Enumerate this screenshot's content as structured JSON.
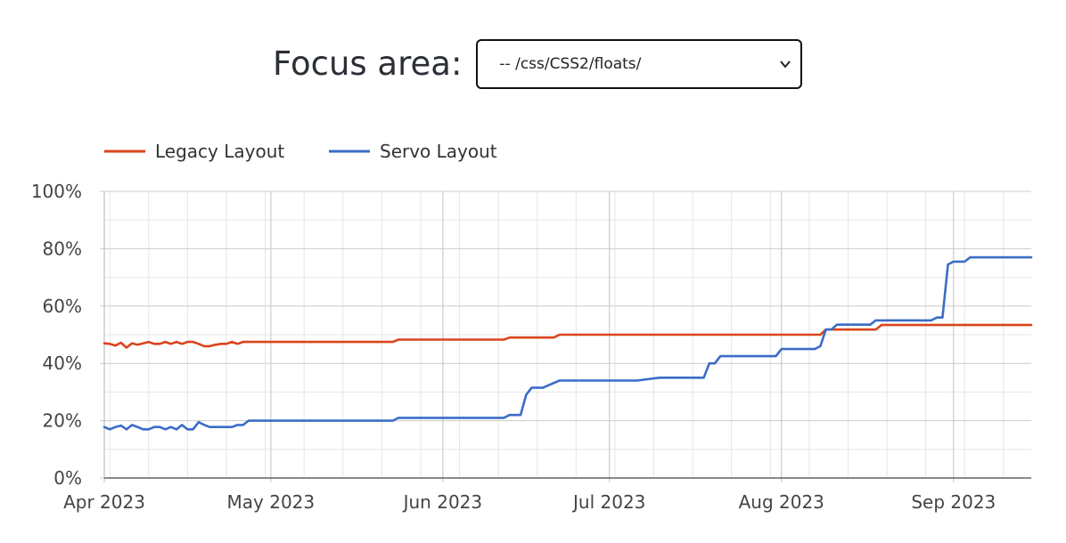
{
  "focus": {
    "label": "Focus area:",
    "selected": "-- /css/CSS2/floats/"
  },
  "chart_data": {
    "type": "line",
    "title": "",
    "xlabel": "",
    "ylabel": "",
    "ylim": [
      0,
      100
    ],
    "yticks": [
      "0%",
      "20%",
      "40%",
      "60%",
      "80%",
      "100%"
    ],
    "xticks": [
      {
        "label": "Apr 2023",
        "date": "2023-04-01"
      },
      {
        "label": "May 2023",
        "date": "2023-05-01"
      },
      {
        "label": "Jun 2023",
        "date": "2023-06-01"
      },
      {
        "label": "Jul 2023",
        "date": "2023-07-01"
      },
      {
        "label": "Aug 2023",
        "date": "2023-08-01"
      },
      {
        "label": "Sep 2023",
        "date": "2023-09-01"
      }
    ],
    "xlim": [
      "2023-04-01",
      "2023-09-15"
    ],
    "grid": true,
    "legend_position": "top-left",
    "series": [
      {
        "name": "Legacy Layout",
        "color": "#d9441d",
        "points": [
          [
            "2023-04-01",
            47.0
          ],
          [
            "2023-04-02",
            46.8
          ],
          [
            "2023-04-03",
            46.2
          ],
          [
            "2023-04-04",
            47.2
          ],
          [
            "2023-04-05",
            45.5
          ],
          [
            "2023-04-06",
            47.0
          ],
          [
            "2023-04-07",
            46.5
          ],
          [
            "2023-04-08",
            47.0
          ],
          [
            "2023-04-09",
            47.5
          ],
          [
            "2023-04-10",
            46.8
          ],
          [
            "2023-04-11",
            46.8
          ],
          [
            "2023-04-12",
            47.5
          ],
          [
            "2023-04-13",
            46.8
          ],
          [
            "2023-04-14",
            47.5
          ],
          [
            "2023-04-15",
            46.8
          ],
          [
            "2023-04-16",
            47.5
          ],
          [
            "2023-04-17",
            47.5
          ],
          [
            "2023-04-18",
            46.8
          ],
          [
            "2023-04-19",
            46.0
          ],
          [
            "2023-04-20",
            46.0
          ],
          [
            "2023-04-21",
            46.5
          ],
          [
            "2023-04-22",
            46.8
          ],
          [
            "2023-04-23",
            46.8
          ],
          [
            "2023-04-24",
            47.5
          ],
          [
            "2023-04-25",
            46.8
          ],
          [
            "2023-04-26",
            47.5
          ],
          [
            "2023-05-23",
            47.5
          ],
          [
            "2023-05-24",
            48.3
          ],
          [
            "2023-06-12",
            48.3
          ],
          [
            "2023-06-13",
            49.0
          ],
          [
            "2023-06-21",
            49.0
          ],
          [
            "2023-06-22",
            50.0
          ],
          [
            "2023-08-08",
            50.0
          ],
          [
            "2023-08-09",
            51.8
          ],
          [
            "2023-08-18",
            51.8
          ],
          [
            "2023-08-19",
            53.4
          ],
          [
            "2023-09-15",
            53.4
          ]
        ]
      },
      {
        "name": "Servo Layout",
        "color": "#3b6cc7",
        "points": [
          [
            "2023-04-01",
            17.8
          ],
          [
            "2023-04-02",
            17.0
          ],
          [
            "2023-04-03",
            17.8
          ],
          [
            "2023-04-04",
            18.3
          ],
          [
            "2023-04-05",
            17.0
          ],
          [
            "2023-04-06",
            18.5
          ],
          [
            "2023-04-07",
            17.8
          ],
          [
            "2023-04-08",
            17.0
          ],
          [
            "2023-04-09",
            17.0
          ],
          [
            "2023-04-10",
            17.8
          ],
          [
            "2023-04-11",
            17.8
          ],
          [
            "2023-04-12",
            17.0
          ],
          [
            "2023-04-13",
            17.8
          ],
          [
            "2023-04-14",
            17.0
          ],
          [
            "2023-04-15",
            18.5
          ],
          [
            "2023-04-16",
            17.0
          ],
          [
            "2023-04-17",
            17.0
          ],
          [
            "2023-04-18",
            19.5
          ],
          [
            "2023-04-19",
            18.5
          ],
          [
            "2023-04-20",
            17.8
          ],
          [
            "2023-04-24",
            17.8
          ],
          [
            "2023-04-25",
            18.5
          ],
          [
            "2023-04-26",
            18.5
          ],
          [
            "2023-04-27",
            20.0
          ],
          [
            "2023-05-23",
            20.0
          ],
          [
            "2023-05-24",
            21.0
          ],
          [
            "2023-06-12",
            21.0
          ],
          [
            "2023-06-13",
            22.0
          ],
          [
            "2023-06-15",
            22.0
          ],
          [
            "2023-06-16",
            29.0
          ],
          [
            "2023-06-17",
            31.5
          ],
          [
            "2023-06-19",
            31.5
          ],
          [
            "2023-06-22",
            34.0
          ],
          [
            "2023-07-06",
            34.0
          ],
          [
            "2023-07-10",
            35.0
          ],
          [
            "2023-07-18",
            35.0
          ],
          [
            "2023-07-19",
            40.0
          ],
          [
            "2023-07-20",
            40.0
          ],
          [
            "2023-07-21",
            42.5
          ],
          [
            "2023-07-31",
            42.5
          ],
          [
            "2023-08-01",
            45.0
          ],
          [
            "2023-08-07",
            45.0
          ],
          [
            "2023-08-08",
            46.0
          ],
          [
            "2023-08-09",
            51.8
          ],
          [
            "2023-08-10",
            51.8
          ],
          [
            "2023-08-11",
            53.5
          ],
          [
            "2023-08-17",
            53.5
          ],
          [
            "2023-08-18",
            55.0
          ],
          [
            "2023-08-28",
            55.0
          ],
          [
            "2023-08-29",
            56.0
          ],
          [
            "2023-08-30",
            56.0
          ],
          [
            "2023-08-31",
            74.5
          ],
          [
            "2023-09-01",
            75.5
          ],
          [
            "2023-09-03",
            75.5
          ],
          [
            "2023-09-04",
            77.0
          ],
          [
            "2023-09-15",
            77.0
          ]
        ]
      }
    ]
  }
}
